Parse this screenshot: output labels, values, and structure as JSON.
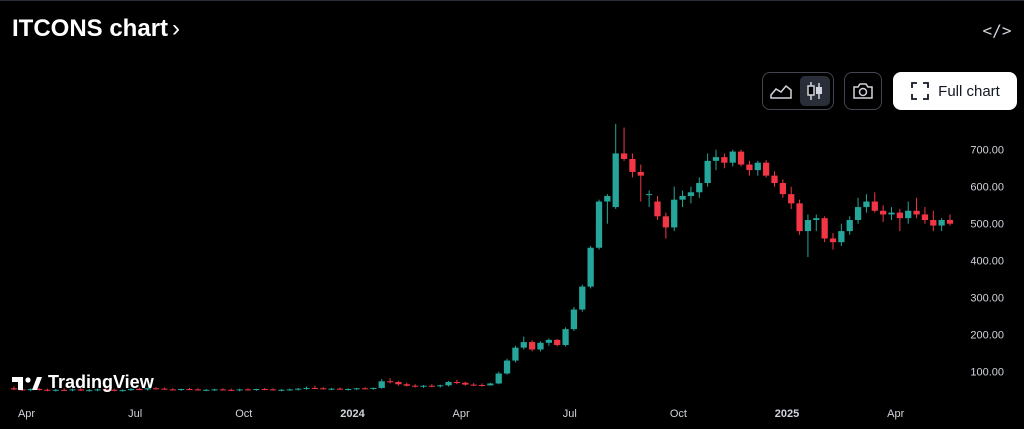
{
  "header": {
    "title": "ITCONS chart",
    "title_chevron": "›",
    "embed_icon": "code-icon"
  },
  "toolbar": {
    "area_icon": "area-chart-icon",
    "candle_icon": "candlestick-icon",
    "camera_icon": "camera-icon",
    "full_chart_label": "Full chart",
    "fullscreen_icon": "fullscreen-icon"
  },
  "branding": {
    "logo_text": "TradingView"
  },
  "colors": {
    "up": "#26a69a",
    "down": "#f23645",
    "background": "#000000",
    "axis_text": "#d1d4dc"
  },
  "chart_data": {
    "type": "candlestick",
    "yticks": [
      100,
      200,
      300,
      400,
      500,
      600,
      700
    ],
    "ytick_labels": [
      "100.00",
      "200.00",
      "300.00",
      "400.00",
      "500.00",
      "600.00",
      "700.00"
    ],
    "ylim": [
      45,
      775
    ],
    "xticks": [
      "Apr",
      "Jul",
      "Oct",
      "2024",
      "Apr",
      "Jul",
      "Oct",
      "2025",
      "Apr"
    ],
    "candles": [
      {
        "o": 55,
        "h": 60,
        "l": 50,
        "c": 52
      },
      {
        "o": 52,
        "h": 56,
        "l": 48,
        "c": 50
      },
      {
        "o": 50,
        "h": 55,
        "l": 47,
        "c": 53
      },
      {
        "o": 53,
        "h": 56,
        "l": 49,
        "c": 51
      },
      {
        "o": 51,
        "h": 54,
        "l": 47,
        "c": 49
      },
      {
        "o": 49,
        "h": 53,
        "l": 46,
        "c": 51
      },
      {
        "o": 51,
        "h": 55,
        "l": 48,
        "c": 50
      },
      {
        "o": 50,
        "h": 54,
        "l": 47,
        "c": 52
      },
      {
        "o": 52,
        "h": 55,
        "l": 48,
        "c": 49
      },
      {
        "o": 49,
        "h": 53,
        "l": 46,
        "c": 50
      },
      {
        "o": 50,
        "h": 54,
        "l": 47,
        "c": 52
      },
      {
        "o": 52,
        "h": 56,
        "l": 49,
        "c": 51
      },
      {
        "o": 51,
        "h": 54,
        "l": 47,
        "c": 49
      },
      {
        "o": 49,
        "h": 52,
        "l": 46,
        "c": 50
      },
      {
        "o": 50,
        "h": 55,
        "l": 48,
        "c": 53
      },
      {
        "o": 53,
        "h": 57,
        "l": 50,
        "c": 52
      },
      {
        "o": 52,
        "h": 56,
        "l": 49,
        "c": 55
      },
      {
        "o": 55,
        "h": 58,
        "l": 52,
        "c": 54
      },
      {
        "o": 54,
        "h": 57,
        "l": 51,
        "c": 52
      },
      {
        "o": 52,
        "h": 55,
        "l": 49,
        "c": 51
      },
      {
        "o": 51,
        "h": 54,
        "l": 48,
        "c": 53
      },
      {
        "o": 53,
        "h": 56,
        "l": 50,
        "c": 52
      },
      {
        "o": 52,
        "h": 55,
        "l": 49,
        "c": 50
      },
      {
        "o": 50,
        "h": 53,
        "l": 47,
        "c": 51
      },
      {
        "o": 51,
        "h": 54,
        "l": 48,
        "c": 52
      },
      {
        "o": 52,
        "h": 55,
        "l": 49,
        "c": 51
      },
      {
        "o": 51,
        "h": 54,
        "l": 48,
        "c": 50
      },
      {
        "o": 50,
        "h": 54,
        "l": 47,
        "c": 52
      },
      {
        "o": 52,
        "h": 55,
        "l": 49,
        "c": 51
      },
      {
        "o": 51,
        "h": 54,
        "l": 48,
        "c": 53
      },
      {
        "o": 53,
        "h": 56,
        "l": 50,
        "c": 52
      },
      {
        "o": 52,
        "h": 55,
        "l": 49,
        "c": 50
      },
      {
        "o": 50,
        "h": 53,
        "l": 47,
        "c": 51
      },
      {
        "o": 51,
        "h": 54,
        "l": 48,
        "c": 52
      },
      {
        "o": 52,
        "h": 56,
        "l": 49,
        "c": 54
      },
      {
        "o": 54,
        "h": 60,
        "l": 51,
        "c": 56
      },
      {
        "o": 56,
        "h": 62,
        "l": 53,
        "c": 55
      },
      {
        "o": 55,
        "h": 58,
        "l": 52,
        "c": 53
      },
      {
        "o": 53,
        "h": 56,
        "l": 50,
        "c": 54
      },
      {
        "o": 54,
        "h": 57,
        "l": 51,
        "c": 52
      },
      {
        "o": 52,
        "h": 55,
        "l": 49,
        "c": 53
      },
      {
        "o": 53,
        "h": 56,
        "l": 50,
        "c": 55
      },
      {
        "o": 55,
        "h": 58,
        "l": 52,
        "c": 54
      },
      {
        "o": 54,
        "h": 57,
        "l": 51,
        "c": 56
      },
      {
        "o": 56,
        "h": 80,
        "l": 54,
        "c": 74
      },
      {
        "o": 74,
        "h": 82,
        "l": 68,
        "c": 72
      },
      {
        "o": 72,
        "h": 75,
        "l": 62,
        "c": 66
      },
      {
        "o": 66,
        "h": 70,
        "l": 60,
        "c": 62
      },
      {
        "o": 62,
        "h": 66,
        "l": 57,
        "c": 60
      },
      {
        "o": 60,
        "h": 64,
        "l": 56,
        "c": 62
      },
      {
        "o": 62,
        "h": 66,
        "l": 58,
        "c": 61
      },
      {
        "o": 61,
        "h": 65,
        "l": 57,
        "c": 63
      },
      {
        "o": 63,
        "h": 75,
        "l": 60,
        "c": 72
      },
      {
        "o": 72,
        "h": 78,
        "l": 66,
        "c": 70
      },
      {
        "o": 70,
        "h": 73,
        "l": 62,
        "c": 65
      },
      {
        "o": 65,
        "h": 69,
        "l": 61,
        "c": 64
      },
      {
        "o": 64,
        "h": 68,
        "l": 60,
        "c": 63
      },
      {
        "o": 63,
        "h": 70,
        "l": 62,
        "c": 68
      },
      {
        "o": 68,
        "h": 100,
        "l": 66,
        "c": 95
      },
      {
        "o": 95,
        "h": 135,
        "l": 92,
        "c": 130
      },
      {
        "o": 130,
        "h": 170,
        "l": 125,
        "c": 165
      },
      {
        "o": 165,
        "h": 195,
        "l": 160,
        "c": 180
      },
      {
        "o": 180,
        "h": 185,
        "l": 155,
        "c": 160
      },
      {
        "o": 160,
        "h": 182,
        "l": 155,
        "c": 178
      },
      {
        "o": 178,
        "h": 190,
        "l": 170,
        "c": 186
      },
      {
        "o": 186,
        "h": 188,
        "l": 168,
        "c": 172
      },
      {
        "o": 172,
        "h": 220,
        "l": 168,
        "c": 215
      },
      {
        "o": 215,
        "h": 275,
        "l": 210,
        "c": 268
      },
      {
        "o": 268,
        "h": 335,
        "l": 262,
        "c": 330
      },
      {
        "o": 330,
        "h": 440,
        "l": 325,
        "c": 435
      },
      {
        "o": 435,
        "h": 565,
        "l": 430,
        "c": 560
      },
      {
        "o": 560,
        "h": 580,
        "l": 500,
        "c": 575
      },
      {
        "o": 545,
        "h": 770,
        "l": 540,
        "c": 690
      },
      {
        "o": 690,
        "h": 760,
        "l": 670,
        "c": 675
      },
      {
        "o": 675,
        "h": 690,
        "l": 625,
        "c": 640
      },
      {
        "o": 640,
        "h": 660,
        "l": 560,
        "c": 630
      },
      {
        "o": 580,
        "h": 590,
        "l": 545,
        "c": 580
      },
      {
        "o": 560,
        "h": 575,
        "l": 510,
        "c": 520
      },
      {
        "o": 520,
        "h": 530,
        "l": 460,
        "c": 490
      },
      {
        "o": 490,
        "h": 600,
        "l": 480,
        "c": 565
      },
      {
        "o": 565,
        "h": 590,
        "l": 545,
        "c": 575
      },
      {
        "o": 575,
        "h": 600,
        "l": 555,
        "c": 585
      },
      {
        "o": 585,
        "h": 625,
        "l": 570,
        "c": 610
      },
      {
        "o": 610,
        "h": 690,
        "l": 600,
        "c": 670
      },
      {
        "o": 670,
        "h": 700,
        "l": 645,
        "c": 680
      },
      {
        "o": 680,
        "h": 690,
        "l": 650,
        "c": 665
      },
      {
        "o": 665,
        "h": 700,
        "l": 655,
        "c": 695
      },
      {
        "o": 695,
        "h": 700,
        "l": 655,
        "c": 660
      },
      {
        "o": 660,
        "h": 670,
        "l": 630,
        "c": 645
      },
      {
        "o": 645,
        "h": 670,
        "l": 630,
        "c": 665
      },
      {
        "o": 665,
        "h": 672,
        "l": 625,
        "c": 630
      },
      {
        "o": 630,
        "h": 642,
        "l": 600,
        "c": 610
      },
      {
        "o": 610,
        "h": 620,
        "l": 570,
        "c": 580
      },
      {
        "o": 580,
        "h": 600,
        "l": 540,
        "c": 555
      },
      {
        "o": 555,
        "h": 565,
        "l": 470,
        "c": 480
      },
      {
        "o": 480,
        "h": 525,
        "l": 410,
        "c": 510
      },
      {
        "o": 510,
        "h": 525,
        "l": 480,
        "c": 515
      },
      {
        "o": 515,
        "h": 520,
        "l": 450,
        "c": 460
      },
      {
        "o": 460,
        "h": 475,
        "l": 430,
        "c": 450
      },
      {
        "o": 450,
        "h": 500,
        "l": 440,
        "c": 480
      },
      {
        "o": 480,
        "h": 520,
        "l": 470,
        "c": 510
      },
      {
        "o": 510,
        "h": 570,
        "l": 500,
        "c": 545
      },
      {
        "o": 545,
        "h": 580,
        "l": 530,
        "c": 560
      },
      {
        "o": 560,
        "h": 585,
        "l": 530,
        "c": 535
      },
      {
        "o": 535,
        "h": 550,
        "l": 505,
        "c": 525
      },
      {
        "o": 525,
        "h": 545,
        "l": 510,
        "c": 530
      },
      {
        "o": 530,
        "h": 540,
        "l": 480,
        "c": 515
      },
      {
        "o": 515,
        "h": 560,
        "l": 500,
        "c": 535
      },
      {
        "o": 535,
        "h": 570,
        "l": 515,
        "c": 525
      },
      {
        "o": 525,
        "h": 545,
        "l": 500,
        "c": 510
      },
      {
        "o": 510,
        "h": 535,
        "l": 480,
        "c": 495
      },
      {
        "o": 495,
        "h": 515,
        "l": 480,
        "c": 510
      },
      {
        "o": 510,
        "h": 525,
        "l": 495,
        "c": 500
      }
    ]
  }
}
